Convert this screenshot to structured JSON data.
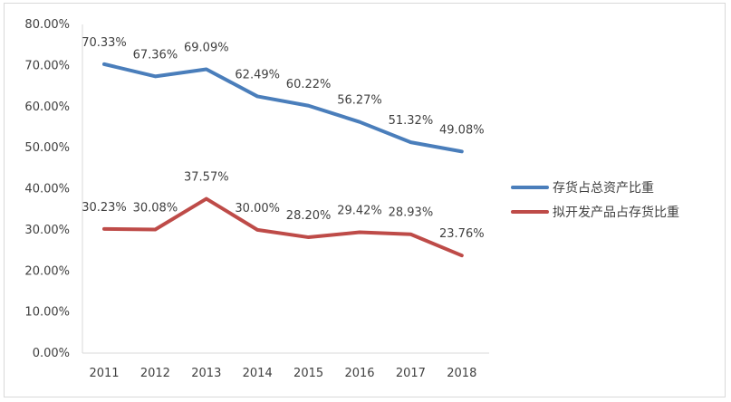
{
  "chart_data": {
    "type": "line",
    "title": "",
    "xlabel": "",
    "ylabel": "",
    "categories": [
      "2011",
      "2012",
      "2013",
      "2014",
      "2015",
      "2016",
      "2017",
      "2018"
    ],
    "ylim": [
      0,
      80
    ],
    "yticks": [
      "0.00%",
      "10.00%",
      "20.00%",
      "30.00%",
      "40.00%",
      "50.00%",
      "60.00%",
      "70.00%",
      "80.00%"
    ],
    "grid": false,
    "legend_position": "right",
    "series": [
      {
        "name": "存货占总资产比重",
        "color": "#4a7ebb",
        "values": [
          70.33,
          67.36,
          69.09,
          62.49,
          60.22,
          56.27,
          51.32,
          49.08
        ],
        "labels": [
          "70.33%",
          "67.36%",
          "69.09%",
          "62.49%",
          "60.22%",
          "56.27%",
          "51.32%",
          "49.08%"
        ]
      },
      {
        "name": "拟开发产品占存货比重",
        "color": "#be4b48",
        "values": [
          30.23,
          30.08,
          37.57,
          30.0,
          28.2,
          29.42,
          28.93,
          23.76
        ],
        "labels": [
          "30.23%",
          "30.08%",
          "37.57%",
          "30.00%",
          "28.20%",
          "29.42%",
          "28.93%",
          "23.76%"
        ]
      }
    ]
  }
}
